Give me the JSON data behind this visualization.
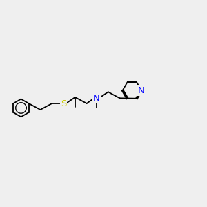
{
  "bg_color": "#efefef",
  "bond_color": "#000000",
  "S_color": "#cccc00",
  "N_color": "#0000ff",
  "font_size": 9.5,
  "bond_width": 1.3,
  "figsize": [
    3.0,
    3.0
  ],
  "dpi": 100,
  "xlim": [
    0.3,
    9.5
  ],
  "ylim": [
    3.2,
    7.2
  ]
}
